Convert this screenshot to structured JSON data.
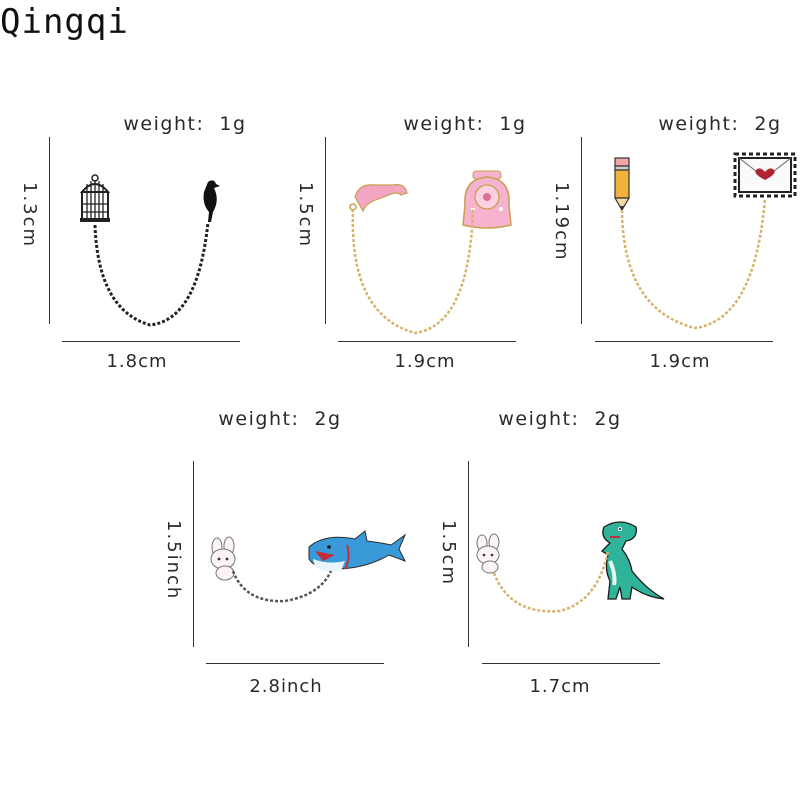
{
  "brand": "Qingqi",
  "products": [
    {
      "name": "birdcage-crow",
      "weight": "weight:  1g",
      "height": "1.3cm",
      "width": "1.8cm"
    },
    {
      "name": "telephone",
      "weight": "weight:  1g",
      "height": "1.5cm",
      "width": "1.9cm"
    },
    {
      "name": "pencil-envelope",
      "weight": "weight:  2g",
      "height": "1.19cm",
      "width": "1.9cm"
    },
    {
      "name": "shark-bunny",
      "weight": "weight:  2g",
      "height": "1.5inch",
      "width": "2.8inch"
    },
    {
      "name": "dinosaur-bunny",
      "weight": "weight:  2g",
      "height": "1.5cm",
      "width": "1.7cm"
    }
  ]
}
